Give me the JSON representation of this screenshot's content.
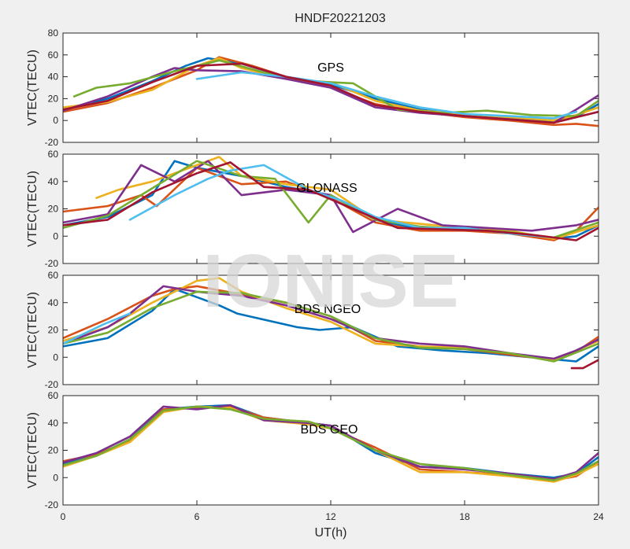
{
  "watermark": "IONISE",
  "chart_data": {
    "type": "line",
    "title": "HNDF20221203",
    "xlabel": "UT(h)",
    "xlim": [
      0,
      24
    ],
    "xticks": [
      0,
      6,
      12,
      18,
      24
    ],
    "xtick_labels": [
      "0",
      "6",
      "12",
      "18",
      "24"
    ],
    "line_colors": [
      "#0072BD",
      "#D95319",
      "#EDB120",
      "#7E2F8E",
      "#77AC30",
      "#4DBEEE",
      "#A2142F"
    ],
    "panels": [
      {
        "label": "GPS",
        "ylabel": "VTEC(TECU)",
        "ylim": [
          -20,
          80
        ],
        "yticks": [
          -20,
          0,
          20,
          40,
          60,
          80
        ],
        "ytick_labels": [
          "-20",
          "0",
          "20",
          "40",
          "60",
          "80"
        ],
        "series": [
          {
            "x": [
              0,
              2,
              4,
              5.5,
              6.5,
              8,
              10,
              12,
              14,
              16,
              18,
              20,
              22,
              23,
              24
            ],
            "y": [
              10,
              20,
              36,
              50,
              57,
              52,
              40,
              33,
              20,
              10,
              5,
              2,
              -1,
              3,
              15
            ]
          },
          {
            "x": [
              0,
              2,
              4,
              6,
              7,
              8.5,
              10,
              12,
              14,
              16,
              18,
              20,
              22,
              23,
              24
            ],
            "y": [
              8,
              16,
              30,
              46,
              58,
              50,
              40,
              30,
              15,
              8,
              3,
              0,
              -4,
              -3,
              -5
            ]
          },
          {
            "x": [
              0,
              2,
              4,
              6,
              7,
              8,
              10,
              12,
              14,
              16,
              18,
              20,
              22,
              23,
              24
            ],
            "y": [
              12,
              17,
              28,
              50,
              57,
              48,
              38,
              35,
              18,
              9,
              6,
              3,
              0,
              5,
              12
            ]
          },
          {
            "x": [
              0,
              2,
              4,
              5,
              6,
              8,
              10,
              12,
              14,
              16,
              18,
              20,
              22,
              23,
              24
            ],
            "y": [
              9,
              22,
              40,
              48,
              46,
              45,
              38,
              30,
              12,
              7,
              4,
              1,
              -2,
              10,
              23
            ]
          },
          {
            "x": [
              0.5,
              1.5,
              3,
              5,
              7,
              9,
              11,
              13,
              15,
              17,
              19,
              21,
              23,
              24
            ],
            "y": [
              22,
              30,
              34,
              45,
              55,
              44,
              36,
              34,
              10,
              7,
              9,
              5,
              4,
              18
            ]
          },
          {
            "x": [
              6,
              8,
              10,
              12,
              14,
              16,
              18,
              20,
              22,
              23
            ],
            "y": [
              38,
              44,
              40,
              34,
              22,
              12,
              6,
              4,
              2,
              8
            ]
          },
          {
            "x": [
              0,
              2,
              4,
              6,
              8,
              10,
              12,
              14,
              16,
              18,
              20,
              22,
              24
            ],
            "y": [
              10,
              18,
              35,
              50,
              52,
              40,
              32,
              14,
              8,
              4,
              1,
              -2,
              8
            ]
          }
        ]
      },
      {
        "label": "GLONASS",
        "ylabel": "VTEC(TECU)",
        "ylim": [
          -20,
          60
        ],
        "yticks": [
          -20,
          0,
          20,
          40,
          60
        ],
        "ytick_labels": [
          "-20",
          "0",
          "20",
          "40",
          "60"
        ],
        "series": [
          {
            "x": [
              0,
              2,
              4,
              5,
              6,
              8,
              10,
              12,
              14,
              16,
              18,
              20,
              22,
              23,
              24
            ],
            "y": [
              8,
              14,
              30,
              55,
              50,
              44,
              36,
              30,
              12,
              5,
              6,
              3,
              -2,
              0,
              8
            ]
          },
          {
            "x": [
              0,
              2,
              3.5,
              4.2,
              6,
              8,
              10,
              12,
              14,
              16,
              18,
              20,
              22,
              23,
              24
            ],
            "y": [
              18,
              22,
              30,
              22,
              50,
              38,
              40,
              28,
              10,
              4,
              4,
              2,
              -3,
              4,
              21
            ]
          },
          {
            "x": [
              1.5,
              2.5,
              4,
              6,
              7,
              8,
              10,
              12,
              14,
              16,
              18,
              20,
              22,
              24
            ],
            "y": [
              28,
              34,
              40,
              52,
              58,
              44,
              38,
              34,
              12,
              9,
              6,
              4,
              -2,
              8
            ]
          },
          {
            "x": [
              0,
              2,
              3.5,
              5,
              6.5,
              8,
              10,
              12,
              13,
              15,
              17,
              19,
              21,
              23,
              24
            ],
            "y": [
              10,
              16,
              52,
              40,
              55,
              30,
              34,
              30,
              3,
              20,
              8,
              6,
              4,
              8,
              12
            ]
          },
          {
            "x": [
              0,
              2,
              4,
              6,
              8,
              9.5,
              11,
              12,
              14,
              16,
              18,
              20,
              22,
              24
            ],
            "y": [
              6,
              15,
              35,
              55,
              44,
              42,
              10,
              30,
              12,
              7,
              5,
              3,
              -1,
              10
            ]
          },
          {
            "x": [
              3,
              5,
              6.5,
              7.5,
              9,
              11,
              12.5,
              14,
              16,
              18,
              20,
              22
            ],
            "y": [
              12,
              30,
              42,
              48,
              52,
              34,
              26,
              14,
              6,
              6,
              2,
              -1
            ]
          },
          {
            "x": [
              0,
              2,
              4,
              6,
              7.5,
              9,
              11,
              13,
              15,
              17,
              19,
              21,
              23,
              24
            ],
            "y": [
              8,
              12,
              32,
              46,
              54,
              36,
              34,
              20,
              6,
              5,
              4,
              1,
              -3,
              6
            ]
          }
        ]
      },
      {
        "label": "BDS NGEO",
        "ylabel": "VTEC(TECU)",
        "ylim": [
          -20,
          60
        ],
        "yticks": [
          -20,
          0,
          20,
          40,
          60
        ],
        "ytick_labels": [
          "-20",
          "0",
          "20",
          "40",
          "60"
        ],
        "series": [
          {
            "x": [
              0,
              2,
              4,
              5,
              6,
              7,
              7.8,
              10.5,
              11.5,
              13,
              15,
              17,
              19,
              21,
              23,
              24
            ],
            "y": [
              8,
              14,
              34,
              50,
              44,
              38,
              32,
              22,
              20,
              22,
              8,
              5,
              3,
              0,
              -3,
              8
            ]
          },
          {
            "x": [
              0,
              2,
              4,
              5,
              6,
              8,
              10,
              12,
              14,
              16,
              18,
              20,
              22,
              23,
              24
            ],
            "y": [
              14,
              28,
              45,
              50,
              52,
              46,
              40,
              30,
              12,
              8,
              6,
              2,
              -2,
              4,
              15
            ]
          },
          {
            "x": [
              0,
              2,
              4,
              6,
              7,
              8,
              10,
              12,
              14,
              16,
              18,
              20,
              22,
              24
            ],
            "y": [
              12,
              22,
              40,
              56,
              58,
              48,
              36,
              26,
              10,
              8,
              7,
              3,
              -2,
              12
            ]
          },
          {
            "x": [
              0,
              2,
              3,
              4.5,
              6,
              8,
              10,
              12,
              14,
              16,
              18,
              20,
              22,
              23,
              24
            ],
            "y": [
              10,
              22,
              32,
              52,
              48,
              45,
              38,
              28,
              14,
              10,
              8,
              3,
              -1,
              5,
              13
            ]
          },
          {
            "x": [
              0,
              2,
              4,
              6,
              8,
              10,
              12,
              14,
              16,
              18,
              20,
              22,
              24
            ],
            "y": [
              10,
              18,
              36,
              48,
              47,
              40,
              30,
              14,
              7,
              6,
              3,
              -3,
              10
            ]
          },
          {
            "x": [
              0,
              1.8,
              3
            ],
            "y": [
              10,
              24,
              32
            ]
          },
          {
            "x": [
              22.8,
              23.3,
              24
            ],
            "y": [
              -8,
              -8,
              -2
            ]
          }
        ]
      },
      {
        "label": "BDS GEO",
        "ylabel": "VTEC(TECU)",
        "ylim": [
          -20,
          60
        ],
        "yticks": [
          -20,
          0,
          20,
          40,
          60
        ],
        "ytick_labels": [
          "-20",
          "0",
          "20",
          "40",
          "60"
        ],
        "series": [
          {
            "x": [
              0,
              1.5,
              3,
              4.5,
              6,
              7.5,
              9,
              11,
              12,
              14,
              16,
              18,
              20,
              22,
              23,
              24
            ],
            "y": [
              10,
              16,
              28,
              50,
              52,
              53,
              44,
              40,
              38,
              18,
              8,
              7,
              3,
              0,
              3,
              15
            ]
          },
          {
            "x": [
              0,
              1.5,
              3,
              4.5,
              6,
              7.5,
              9,
              11,
              12,
              14,
              16,
              18,
              20,
              22,
              23,
              24
            ],
            "y": [
              12,
              17,
              27,
              50,
              51,
              52,
              44,
              40,
              36,
              22,
              6,
              4,
              2,
              -2,
              1,
              12
            ]
          },
          {
            "x": [
              0,
              1.5,
              3,
              4.5,
              6,
              7.5,
              9,
              11,
              12,
              14,
              16,
              18,
              20,
              22,
              23,
              24
            ],
            "y": [
              8,
              16,
              26,
              48,
              52,
              51,
              42,
              39,
              36,
              20,
              4,
              4,
              1,
              -3,
              2,
              10
            ]
          },
          {
            "x": [
              0,
              1.5,
              3,
              4.5,
              6,
              7.5,
              9,
              11,
              12,
              14,
              16,
              18,
              20,
              22,
              23,
              24
            ],
            "y": [
              11,
              18,
              30,
              52,
              50,
              53,
              42,
              40,
              38,
              20,
              8,
              6,
              3,
              -1,
              4,
              18
            ]
          },
          {
            "x": [
              0,
              1.5,
              3,
              4.5,
              6,
              7.5,
              9,
              11,
              12,
              14,
              16,
              18,
              20,
              22,
              23,
              24
            ],
            "y": [
              9,
              16,
              28,
              49,
              52,
              50,
              43,
              41,
              36,
              20,
              10,
              7,
              2,
              -2,
              3,
              12
            ]
          }
        ]
      }
    ]
  }
}
